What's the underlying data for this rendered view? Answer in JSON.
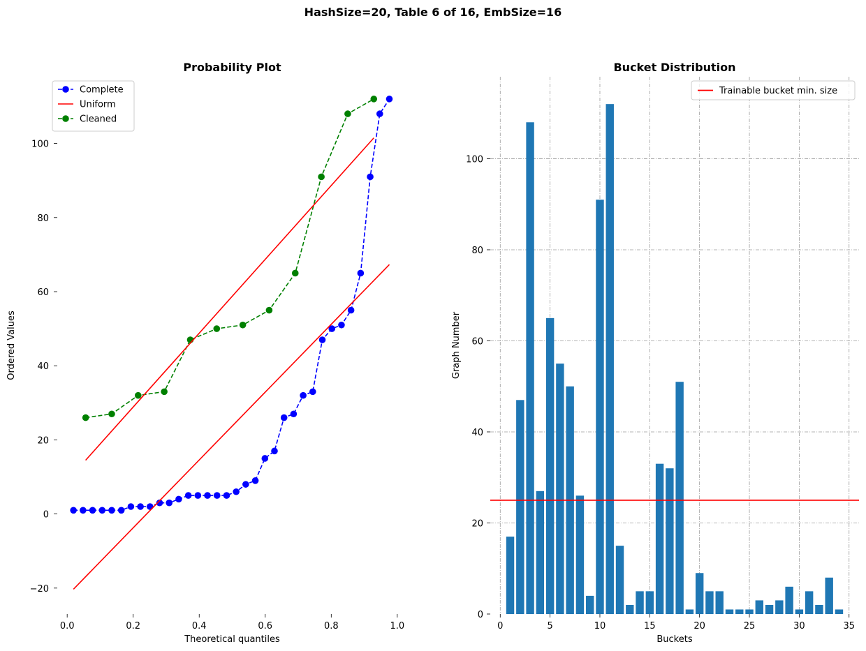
{
  "suptitle": "HashSize=20, Table 6 of 16, EmbSize=16",
  "chart_data": [
    {
      "type": "line",
      "title": "Probability Plot",
      "xlabel": "Theoretical quantiles",
      "ylabel": "Ordered Values",
      "xlim": [
        -0.03,
        1.03
      ],
      "ylim": [
        -27,
        118
      ],
      "xticks": [
        0.0,
        0.2,
        0.4,
        0.6,
        0.8,
        1.0
      ],
      "xtick_labels": [
        "0.0",
        "0.2",
        "0.4",
        "0.6",
        "0.8",
        "1.0"
      ],
      "yticks": [
        -20,
        0,
        20,
        40,
        60,
        80,
        100
      ],
      "ytick_labels": [
        "−20",
        "0",
        "20",
        "40",
        "60",
        "80",
        "100"
      ],
      "grid": false,
      "legend": "upper-left",
      "series": [
        {
          "name": "Complete",
          "color": "#0000ff",
          "style": "dashed-marker",
          "x": [
            0.019,
            0.048,
            0.077,
            0.106,
            0.135,
            0.164,
            0.193,
            0.222,
            0.251,
            0.28,
            0.309,
            0.338,
            0.367,
            0.396,
            0.425,
            0.454,
            0.483,
            0.512,
            0.541,
            0.57,
            0.599,
            0.628,
            0.657,
            0.686,
            0.715,
            0.744,
            0.773,
            0.802,
            0.831,
            0.86,
            0.889,
            0.918,
            0.947,
            0.976
          ],
          "y": [
            1,
            1,
            1,
            1,
            1,
            1,
            2,
            2,
            2,
            3,
            3,
            4,
            5,
            5,
            5,
            5,
            5,
            6,
            8,
            9,
            15,
            17,
            26,
            27,
            32,
            33,
            47,
            50,
            51,
            55,
            65,
            91,
            108,
            112
          ]
        },
        {
          "name": "Uniform",
          "color": "#ff0000",
          "style": "solid",
          "x": [
            0.019,
            0.976
          ],
          "y": [
            -20.3,
            67.3
          ]
        },
        {
          "name": "Cleaned",
          "color": "#008000",
          "style": "dashed-marker",
          "x": [
            0.056,
            0.135,
            0.215,
            0.294,
            0.373,
            0.453,
            0.532,
            0.612,
            0.691,
            0.77,
            0.85,
            0.929
          ],
          "y": [
            26,
            27,
            32,
            33,
            47,
            50,
            51,
            55,
            65,
            91,
            108,
            112
          ]
        },
        {
          "name": "",
          "color": "#ff0000",
          "style": "solid",
          "x": [
            0.056,
            0.929
          ],
          "y": [
            14.5,
            101.5
          ]
        }
      ]
    },
    {
      "type": "bar",
      "title": "Bucket Distribution",
      "xlabel": "Buckets",
      "ylabel": "Graph Number",
      "xlim": [
        -1,
        36
      ],
      "ylim": [
        0,
        118
      ],
      "xticks": [
        0,
        5,
        10,
        15,
        20,
        25,
        30,
        35
      ],
      "xtick_labels": [
        "0",
        "5",
        "10",
        "15",
        "20",
        "25",
        "30",
        "35"
      ],
      "yticks": [
        0,
        20,
        40,
        60,
        80,
        100
      ],
      "ytick_labels": [
        "0",
        "20",
        "40",
        "60",
        "80",
        "100"
      ],
      "grid": true,
      "legend": "upper-right",
      "bar_color": "#1f77b4",
      "categories": [
        1,
        2,
        3,
        4,
        5,
        6,
        7,
        8,
        9,
        10,
        11,
        12,
        13,
        14,
        15,
        16,
        17,
        18,
        19,
        20,
        21,
        22,
        23,
        24,
        25,
        26,
        27,
        28,
        29,
        30,
        31,
        32,
        33,
        34
      ],
      "values": [
        17,
        47,
        108,
        27,
        65,
        55,
        50,
        26,
        4,
        91,
        112,
        15,
        2,
        5,
        5,
        33,
        32,
        51,
        1,
        9,
        5,
        5,
        1,
        1,
        1,
        3,
        2,
        3,
        6,
        1,
        5,
        2,
        8,
        1
      ],
      "hline": {
        "name": "Trainable bucket min. size",
        "y": 25,
        "color": "#ff0000"
      }
    }
  ]
}
